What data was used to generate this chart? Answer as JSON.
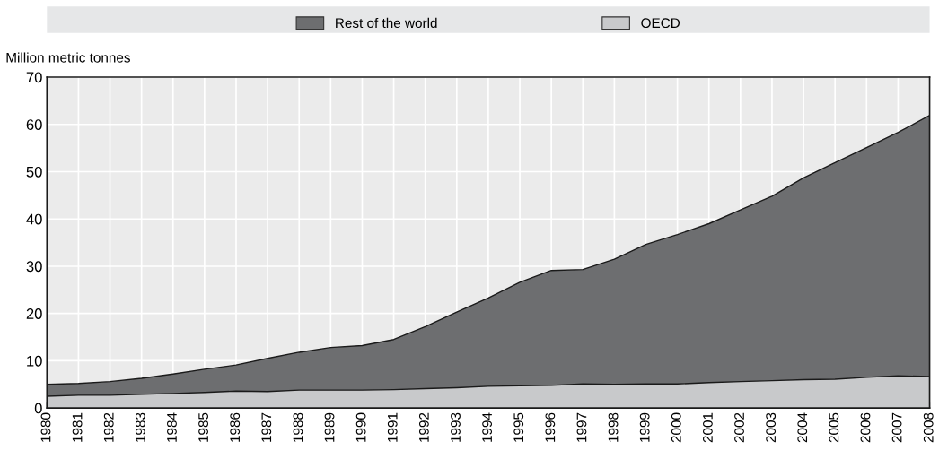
{
  "chart_data": {
    "type": "area",
    "stacked": true,
    "ylabel": "Million metric tonnes",
    "x": [
      1980,
      1981,
      1982,
      1983,
      1984,
      1985,
      1986,
      1987,
      1988,
      1989,
      1990,
      1991,
      1992,
      1993,
      1994,
      1995,
      1996,
      1997,
      1998,
      1999,
      2000,
      2001,
      2002,
      2003,
      2004,
      2005,
      2006,
      2007,
      2008
    ],
    "series": [
      {
        "name": "OECD",
        "color": "#c8c9cb",
        "values": [
          2.5,
          2.7,
          2.7,
          2.9,
          3.1,
          3.3,
          3.6,
          3.5,
          3.8,
          3.8,
          3.8,
          3.9,
          4.1,
          4.3,
          4.6,
          4.7,
          4.8,
          5.1,
          5.0,
          5.1,
          5.1,
          5.4,
          5.6,
          5.8,
          6.0,
          6.1,
          6.5,
          6.8,
          6.7
        ]
      },
      {
        "name": "Rest of the world",
        "color": "#6d6e70",
        "values": [
          2.5,
          2.5,
          2.9,
          3.4,
          4.1,
          4.9,
          5.5,
          7.0,
          8.0,
          9.0,
          9.4,
          10.6,
          13.1,
          16.0,
          18.7,
          21.9,
          24.3,
          24.2,
          26.5,
          29.5,
          31.6,
          33.6,
          36.3,
          39.0,
          42.7,
          45.8,
          48.6,
          51.5,
          55.2
        ]
      }
    ],
    "xlim": [
      1980,
      2008
    ],
    "xticks": [
      1980,
      1981,
      1982,
      1983,
      1984,
      1985,
      1986,
      1987,
      1988,
      1989,
      1990,
      1991,
      1992,
      1993,
      1994,
      1995,
      1996,
      1997,
      1998,
      1999,
      2000,
      2001,
      2002,
      2003,
      2004,
      2005,
      2006,
      2007,
      2008
    ],
    "ylim": [
      0,
      70
    ],
    "yticks": [
      0,
      10,
      20,
      30,
      40,
      50,
      60,
      70
    ],
    "grid": true,
    "legend": "top"
  }
}
